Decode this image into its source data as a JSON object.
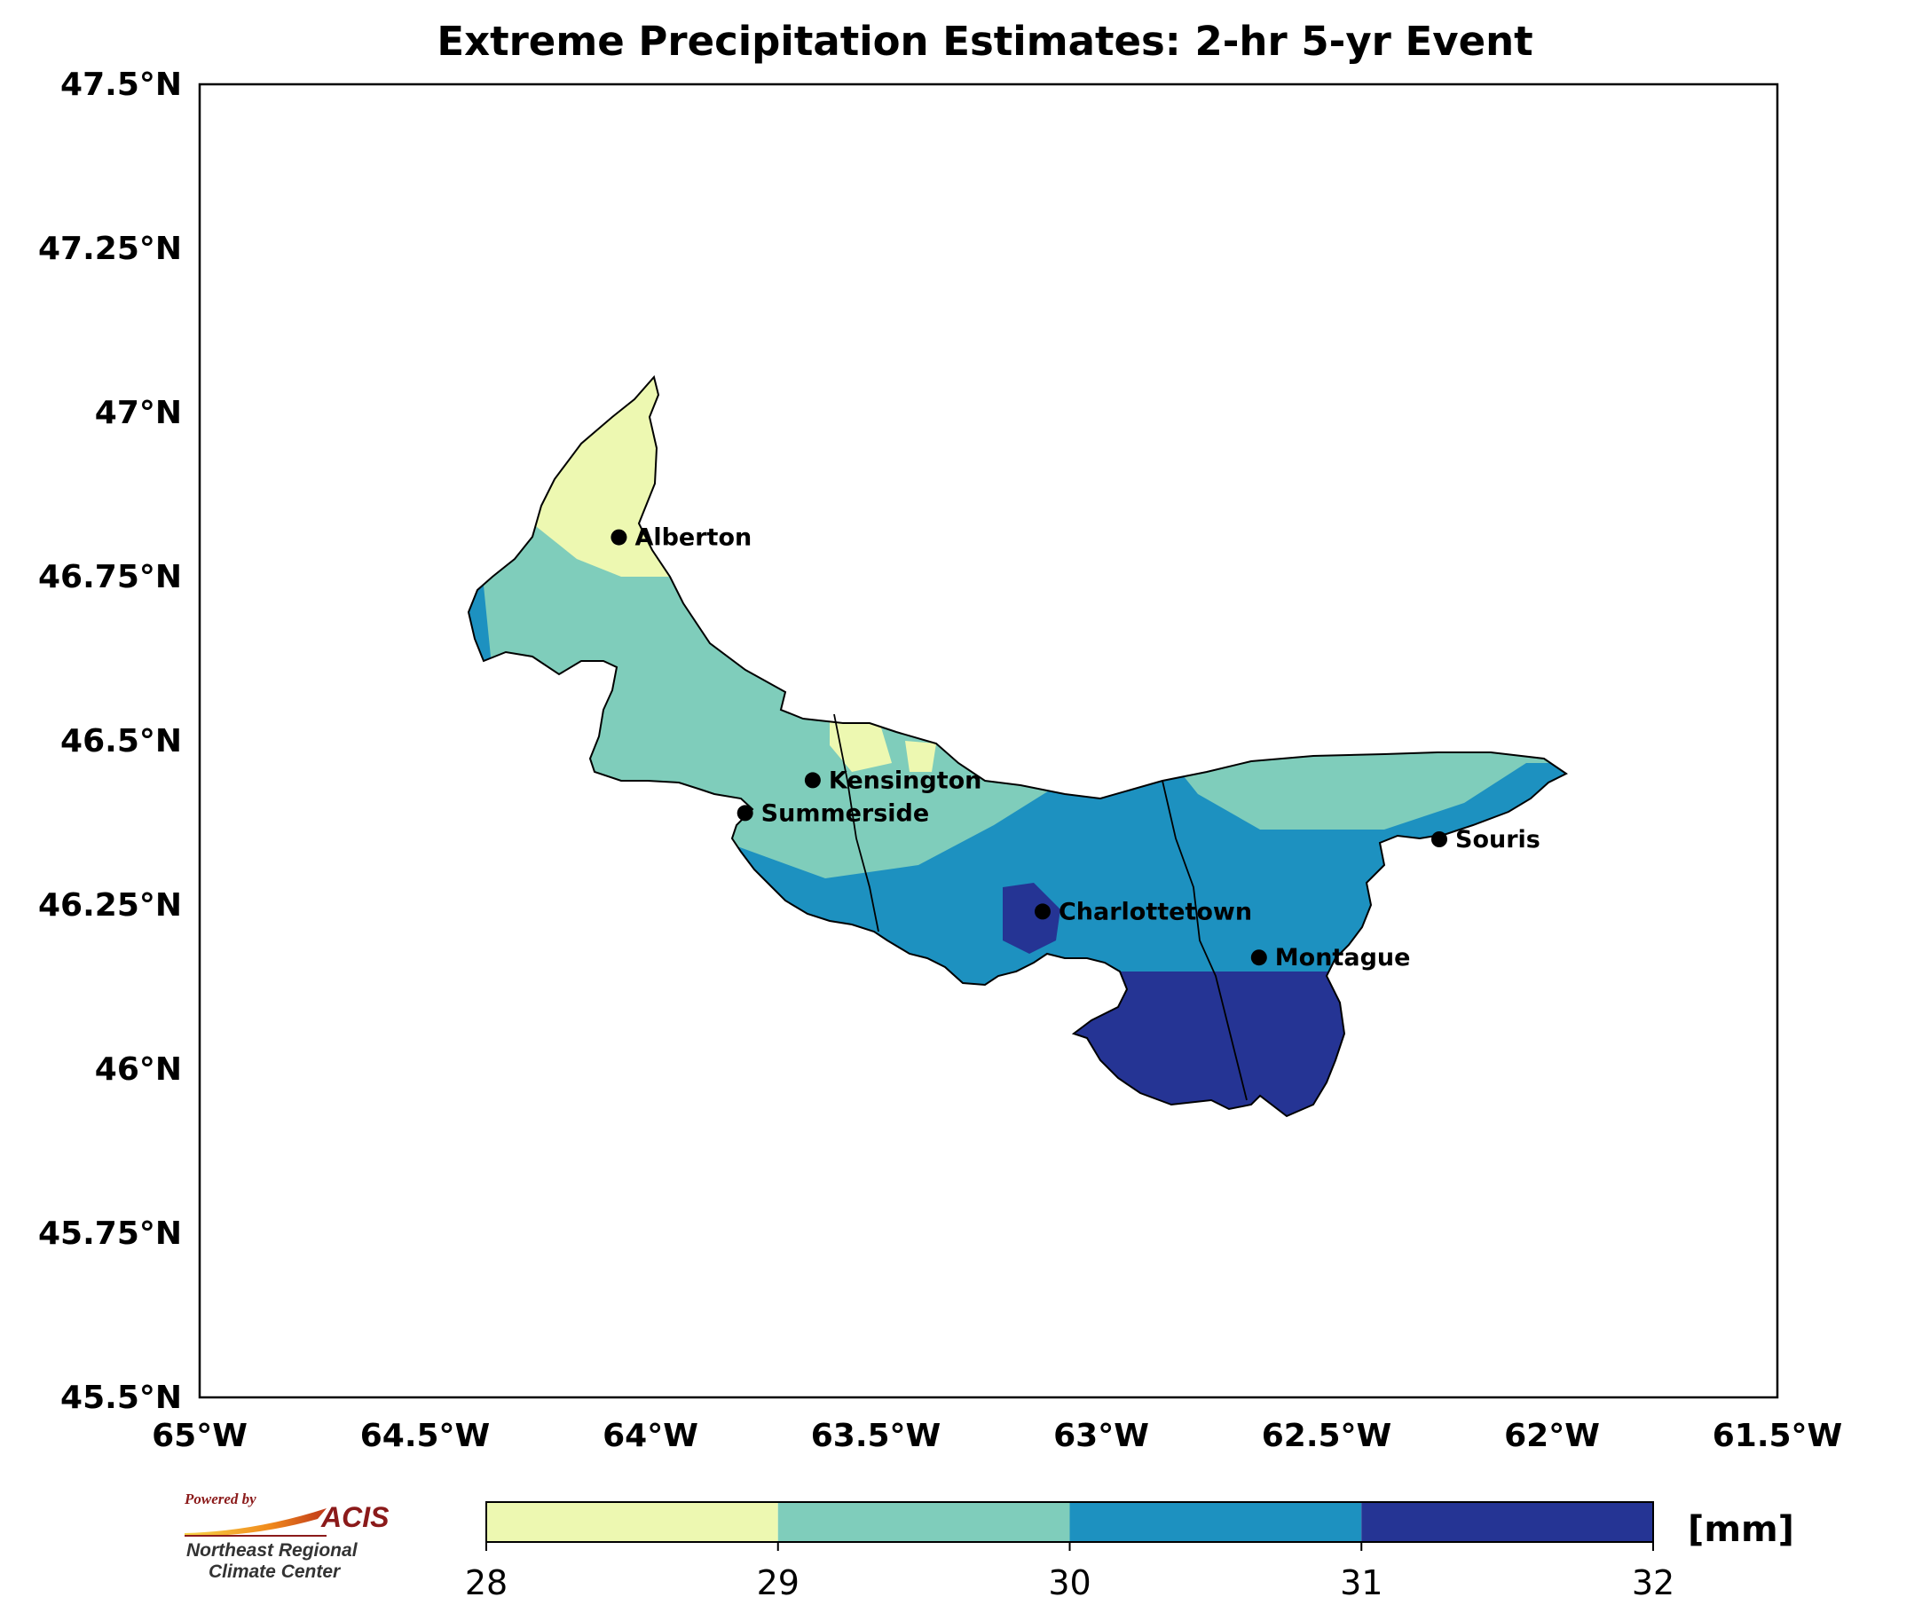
{
  "title": "Extreme Precipitation Estimates: 2-hr 5-yr Event",
  "map": {
    "lon_range": [
      -65,
      -61.5
    ],
    "lat_range": [
      45.5,
      47.5
    ],
    "x_ticks": [
      {
        "value": -65,
        "label": "65°W"
      },
      {
        "value": -64.5,
        "label": "64.5°W"
      },
      {
        "value": -64,
        "label": "64°W"
      },
      {
        "value": -63.5,
        "label": "63.5°W"
      },
      {
        "value": -63,
        "label": "63°W"
      },
      {
        "value": -62.5,
        "label": "62.5°W"
      },
      {
        "value": -62,
        "label": "62°W"
      },
      {
        "value": -61.5,
        "label": "61.5°W"
      }
    ],
    "y_ticks": [
      {
        "value": 47.5,
        "label": "47.5°N"
      },
      {
        "value": 47.25,
        "label": "47.25°N"
      },
      {
        "value": 47,
        "label": "47°N"
      },
      {
        "value": 46.75,
        "label": "46.75°N"
      },
      {
        "value": 46.5,
        "label": "46.5°N"
      },
      {
        "value": 46.25,
        "label": "46.25°N"
      },
      {
        "value": 46,
        "label": "46°N"
      },
      {
        "value": 45.75,
        "label": "45.75°N"
      },
      {
        "value": 45.5,
        "label": "45.5°N"
      }
    ],
    "cities": [
      {
        "name": "Alberton",
        "lon": -64.07,
        "lat": 46.81
      },
      {
        "name": "Kensington",
        "lon": -63.64,
        "lat": 46.44
      },
      {
        "name": "Summerside",
        "lon": -63.79,
        "lat": 46.39
      },
      {
        "name": "Charlottetown",
        "lon": -63.13,
        "lat": 46.24
      },
      {
        "name": "Souris",
        "lon": -62.25,
        "lat": 46.35
      },
      {
        "name": "Montague",
        "lon": -62.65,
        "lat": 46.17
      }
    ],
    "colors": {
      "28-29": "#edf8b1",
      "29-30": "#7fcdbb",
      "30-31": "#1d91c0",
      "31-32": "#253494"
    }
  },
  "colorbar": {
    "ticks": [
      "28",
      "29",
      "30",
      "31",
      "32"
    ],
    "colors": [
      "#edf8b1",
      "#7fcdbb",
      "#1d91c0",
      "#253494"
    ],
    "unit": "[mm]"
  },
  "logo": {
    "powered": "Powered by",
    "acis": "ACIS",
    "org_line1": "Northeast Regional",
    "org_line2": "Climate Center"
  }
}
